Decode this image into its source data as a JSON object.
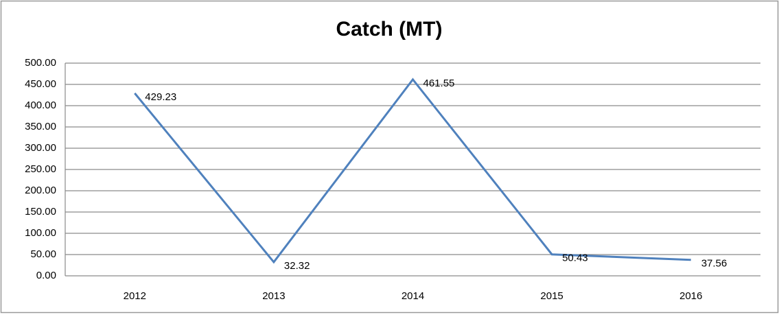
{
  "chart_data": {
    "type": "line",
    "title": "Catch (MT)",
    "categories": [
      "2012",
      "2013",
      "2014",
      "2015",
      "2016"
    ],
    "series": [
      {
        "name": "Catch (MT)",
        "color": "#4f81bd",
        "values": [
          429.23,
          32.32,
          461.55,
          50.43,
          37.56
        ]
      }
    ],
    "ylim": [
      0,
      500
    ],
    "yticks": [
      {
        "value": 0,
        "label": "0.00"
      },
      {
        "value": 50,
        "label": "50.00"
      },
      {
        "value": 100,
        "label": "100.00"
      },
      {
        "value": 150,
        "label": "150.00"
      },
      {
        "value": 200,
        "label": "200.00"
      },
      {
        "value": 250,
        "label": "250.00"
      },
      {
        "value": 300,
        "label": "300.00"
      },
      {
        "value": 350,
        "label": "350.00"
      },
      {
        "value": 400,
        "label": "400.00"
      },
      {
        "value": 450,
        "label": "450.00"
      },
      {
        "value": 500,
        "label": "500.00"
      }
    ],
    "grid": true
  }
}
